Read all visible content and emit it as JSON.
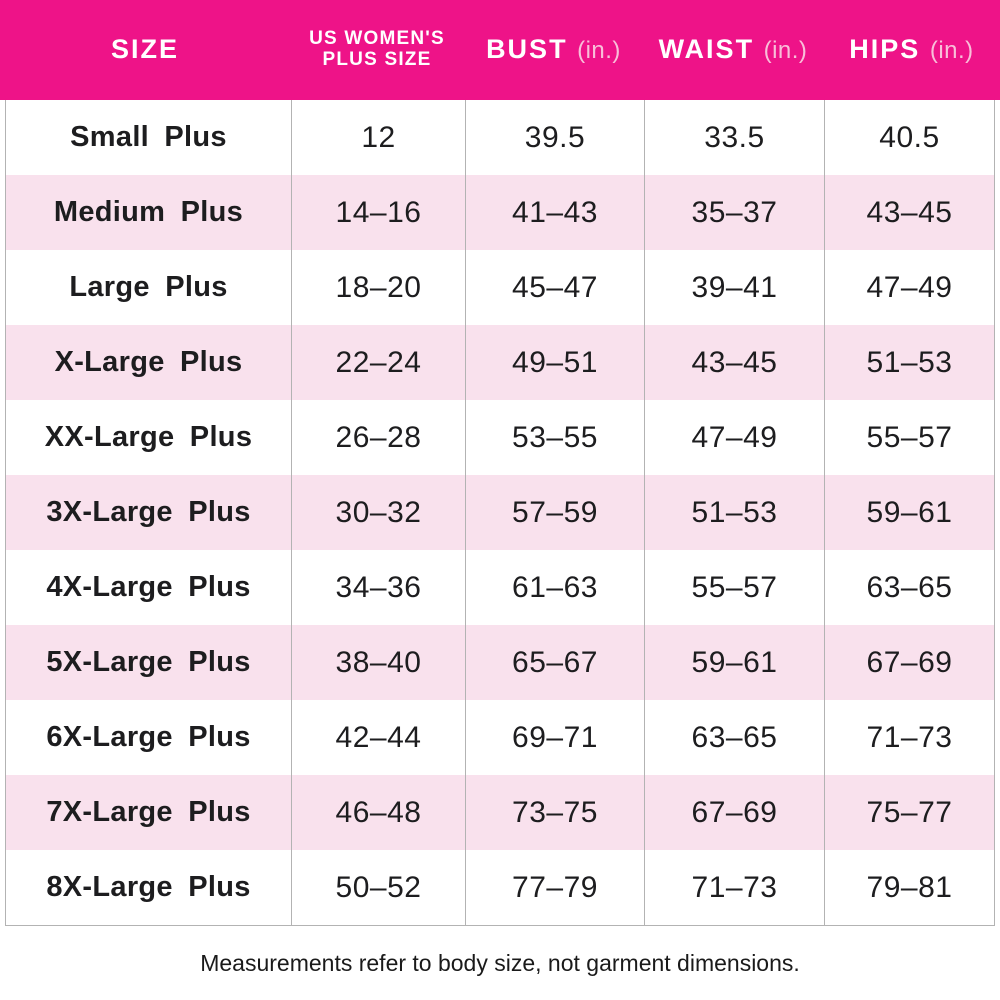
{
  "colors": {
    "header_bg": "#EE1388",
    "header_text": "#FFFFFF",
    "header_unit_text": "#F8BFD9",
    "row_bg": "#FFFFFF",
    "row_alt_bg": "#F9E1ED",
    "grid_line": "#B3B3B3",
    "body_text": "#1D1D1F"
  },
  "header": {
    "col_size": "SIZE",
    "col_plus_line1": "US WOMEN'S",
    "col_plus_line2": "PLUS SIZE",
    "col_bust_word": "BUST",
    "col_bust_unit": "(in.)",
    "col_waist_word": "WAIST",
    "col_waist_unit": "(in.)",
    "col_hips_word": "HIPS",
    "col_hips_unit": "(in.)"
  },
  "footer": {
    "note": "Measurements refer to body size, not garment dimensions."
  },
  "chart_data": {
    "type": "table",
    "columns": [
      "SIZE",
      "US WOMEN'S PLUS SIZE",
      "BUST (in.)",
      "WAIST (in.)",
      "HIPS (in.)"
    ],
    "rows": [
      [
        "Small Plus",
        "12",
        "39.5",
        "33.5",
        "40.5"
      ],
      [
        "Medium Plus",
        "14–16",
        "41–43",
        "35–37",
        "43–45"
      ],
      [
        "Large Plus",
        "18–20",
        "45–47",
        "39–41",
        "47–49"
      ],
      [
        "X-Large Plus",
        "22–24",
        "49–51",
        "43–45",
        "51–53"
      ],
      [
        "XX-Large Plus",
        "26–28",
        "53–55",
        "47–49",
        "55–57"
      ],
      [
        "3X-Large Plus",
        "30–32",
        "57–59",
        "51–53",
        "59–61"
      ],
      [
        "4X-Large Plus",
        "34–36",
        "61–63",
        "55–57",
        "63–65"
      ],
      [
        "5X-Large Plus",
        "38–40",
        "65–67",
        "59–61",
        "67–69"
      ],
      [
        "6X-Large Plus",
        "42–44",
        "69–71",
        "63–65",
        "71–73"
      ],
      [
        "7X-Large Plus",
        "46–48",
        "73–75",
        "67–69",
        "75–77"
      ],
      [
        "8X-Large Plus",
        "50–52",
        "77–79",
        "71–73",
        "79–81"
      ]
    ],
    "footnote": "Measurements refer to body size, not garment dimensions.",
    "layout": {
      "alternating_row_colors": true,
      "grid": "vertical-only",
      "legend_position": "none"
    }
  }
}
